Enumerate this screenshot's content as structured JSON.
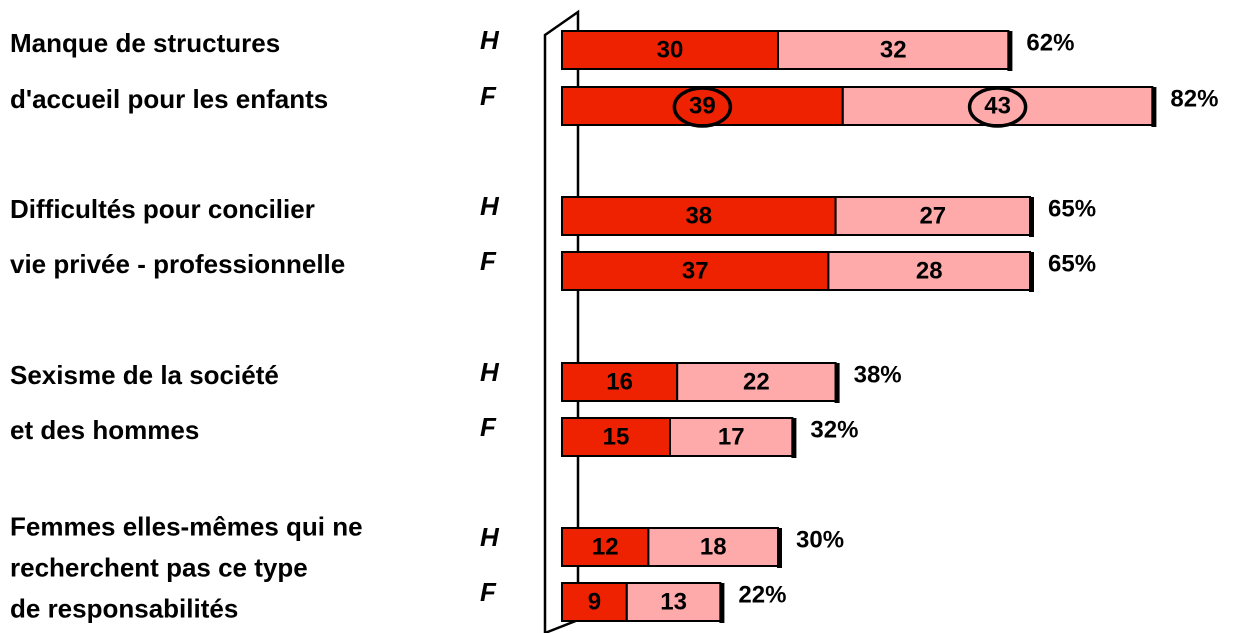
{
  "chart_data": {
    "type": "bar",
    "orientation": "horizontal",
    "stacked": true,
    "groups": [
      {
        "lines": [
          "Manque de structures",
          "d'accueil pour les enfants"
        ]
      },
      {
        "lines": [
          "Difficultés pour concilier",
          "vie privée - professionnelle"
        ]
      },
      {
        "lines": [
          "Sexisme de la société",
          "et des hommes"
        ]
      },
      {
        "lines": [
          "Femmes elles-mêmes qui ne",
          "recherchent pas ce type",
          "de responsabilités"
        ]
      }
    ],
    "categories": [
      "H",
      "F",
      "H",
      "F",
      "H",
      "F",
      "H",
      "F"
    ],
    "series": [
      {
        "color": "#ee2200",
        "values": [
          30,
          39,
          38,
          37,
          16,
          15,
          12,
          9
        ]
      },
      {
        "color": "#ffaaaa",
        "values": [
          32,
          43,
          27,
          28,
          22,
          17,
          18,
          13
        ]
      }
    ],
    "totals": {
      "values": [
        62,
        82,
        65,
        65,
        38,
        32,
        30,
        22
      ],
      "value_labels": [
        "62%",
        "82%",
        "65%",
        "65%",
        "38%",
        "32%",
        "30%",
        "22%"
      ]
    }
  }
}
